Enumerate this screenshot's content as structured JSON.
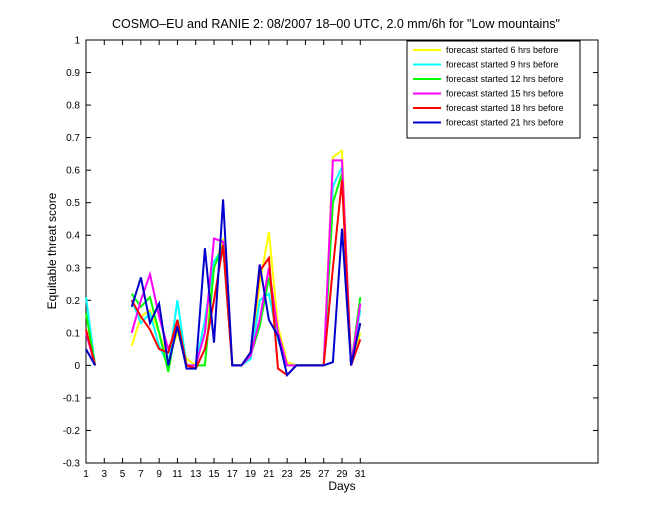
{
  "chart_data": {
    "type": "line",
    "title": "COSMO–EU and RANIE 2: 08/2007 18–00 UTC, 2.0 mm/6h for \"Low mountains\"",
    "xlabel": "Days",
    "ylabel": "Equitable threat score",
    "xlim": [
      1,
      57
    ],
    "ylim": [
      -0.3,
      1
    ],
    "xticks": [
      1,
      3,
      5,
      7,
      9,
      11,
      13,
      15,
      17,
      19,
      21,
      23,
      25,
      27,
      29,
      31
    ],
    "yticks": [
      -0.3,
      -0.2,
      -0.1,
      0,
      0.1,
      0.2,
      0.3,
      0.4,
      0.5,
      0.6,
      0.7,
      0.8,
      0.9,
      1
    ],
    "legend_position": "top-right",
    "grid": false,
    "series": [
      {
        "name": "forecast started 6 hrs before",
        "color": "#ffff00",
        "x": [
          1,
          2,
          3,
          6,
          7,
          8,
          9,
          10,
          11,
          12,
          13,
          14,
          15,
          16,
          17,
          18,
          19,
          20,
          21,
          22,
          23,
          24,
          25,
          27,
          28,
          29,
          30,
          31
        ],
        "y": [
          0.11,
          0.0,
          null,
          0.06,
          0.15,
          0.17,
          0.1,
          0.02,
          0.1,
          0.02,
          0.0,
          0.1,
          0.3,
          0.39,
          0.0,
          0.0,
          0.04,
          0.25,
          0.41,
          0.12,
          0.01,
          0.0,
          0.0,
          0.0,
          0.64,
          0.66,
          0.0,
          0.1
        ]
      },
      {
        "name": "forecast started 9 hrs before",
        "color": "#00ffff",
        "x": [
          1,
          2,
          3,
          6,
          7,
          8,
          9,
          10,
          11,
          12,
          13,
          14,
          15,
          16,
          17,
          18,
          19,
          20,
          21,
          22,
          23,
          24,
          25,
          27,
          28,
          29,
          30,
          31
        ],
        "y": [
          0.21,
          0.0,
          null,
          0.2,
          0.13,
          0.16,
          0.06,
          0.0,
          0.2,
          0.0,
          0.0,
          0.14,
          0.32,
          0.36,
          0.0,
          0.0,
          0.02,
          0.2,
          0.22,
          0.08,
          0.0,
          0.0,
          0.0,
          0.0,
          0.55,
          0.61,
          0.0,
          0.17
        ]
      },
      {
        "name": "forecast started 12 hrs before",
        "color": "#00ff00",
        "x": [
          1,
          2,
          3,
          6,
          7,
          8,
          9,
          10,
          11,
          12,
          13,
          14,
          15,
          16,
          17,
          18,
          19,
          20,
          21,
          22,
          23,
          24,
          25,
          27,
          28,
          29,
          30,
          31
        ],
        "y": [
          0.16,
          0.0,
          null,
          0.22,
          0.18,
          0.21,
          0.1,
          -0.02,
          0.14,
          0.0,
          0.0,
          0.0,
          0.3,
          0.37,
          0.0,
          0.0,
          0.03,
          0.12,
          0.27,
          0.1,
          0.0,
          0.0,
          0.0,
          0.0,
          0.5,
          0.59,
          0.0,
          0.21
        ]
      },
      {
        "name": "forecast started 15 hrs before",
        "color": "#ff00ff",
        "x": [
          1,
          2,
          3,
          6,
          7,
          8,
          9,
          10,
          11,
          12,
          13,
          14,
          15,
          16,
          17,
          18,
          19,
          20,
          21,
          22,
          23,
          24,
          25,
          27,
          28,
          29,
          30,
          31
        ],
        "y": [
          0.1,
          0.0,
          null,
          0.1,
          0.2,
          0.28,
          0.15,
          0.05,
          0.12,
          0.0,
          0.0,
          0.1,
          0.39,
          0.38,
          0.0,
          0.0,
          0.03,
          0.14,
          0.3,
          0.1,
          0.0,
          0.0,
          0.0,
          0.0,
          0.63,
          0.63,
          0.0,
          0.19
        ]
      },
      {
        "name": "forecast started 18 hrs before",
        "color": "#ff0000",
        "x": [
          1,
          2,
          3,
          6,
          7,
          8,
          9,
          10,
          11,
          12,
          13,
          14,
          15,
          16,
          17,
          18,
          19,
          20,
          21,
          22,
          23,
          24,
          25,
          27,
          28,
          29,
          30,
          31
        ],
        "y": [
          0.11,
          0.0,
          null,
          0.2,
          0.15,
          0.11,
          0.05,
          0.04,
          0.14,
          0.0,
          -0.01,
          0.05,
          0.2,
          0.37,
          0.0,
          0.0,
          0.04,
          0.29,
          0.33,
          -0.01,
          -0.03,
          0.0,
          0.0,
          0.0,
          0.3,
          0.57,
          0.0,
          0.08
        ]
      },
      {
        "name": "forecast started 21 hrs before",
        "color": "#0000cc",
        "x": [
          1,
          2,
          3,
          6,
          7,
          8,
          9,
          10,
          11,
          12,
          13,
          14,
          15,
          16,
          17,
          18,
          19,
          20,
          21,
          22,
          23,
          24,
          25,
          27,
          28,
          29,
          30,
          31
        ],
        "y": [
          0.05,
          0.0,
          null,
          0.18,
          0.27,
          0.13,
          0.19,
          0.0,
          0.12,
          -0.01,
          -0.01,
          0.36,
          0.07,
          0.51,
          0.0,
          0.0,
          0.04,
          0.31,
          0.14,
          0.09,
          -0.03,
          0.0,
          0.0,
          0.0,
          0.01,
          0.42,
          0.0,
          0.13
        ]
      }
    ]
  }
}
